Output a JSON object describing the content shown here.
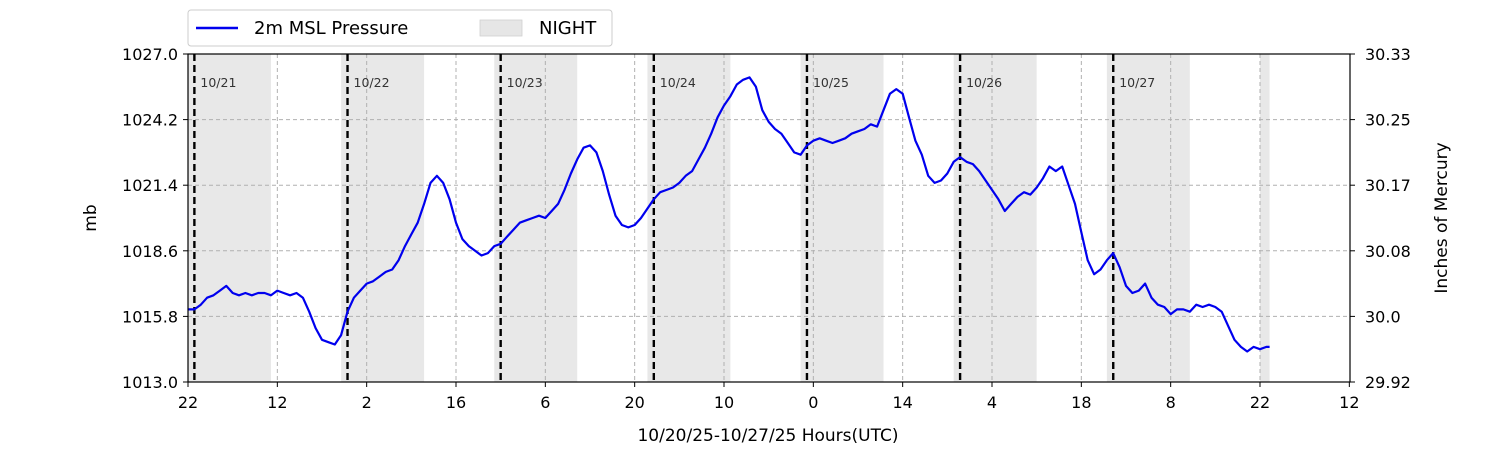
{
  "chart_data": {
    "type": "line",
    "xlabel": "10/20/25-10/27/25  Hours(UTC)",
    "ylabel_left": "mb",
    "ylabel_right": "Inches of Mercury",
    "x_unit": "hours since 10/20/25 22:00 UTC",
    "xlim": [
      0,
      174
    ],
    "ylim_left": [
      1013.0,
      1027.0
    ],
    "ylim_right": [
      29.92,
      30.33
    ],
    "x_tick_positions": [
      0,
      14,
      28,
      42,
      56,
      70,
      84,
      98,
      112,
      126,
      140,
      154,
      168,
      182
    ],
    "x_tick_labels": [
      "22",
      "12",
      "2",
      "16",
      "6",
      "20",
      "10",
      "0",
      "14",
      "4",
      "18",
      "8",
      "22",
      "12"
    ],
    "y_ticks_left": [
      "1013.0",
      "1015.8",
      "1018.6",
      "1021.4",
      "1024.2",
      "1027.0"
    ],
    "y_ticks_right": [
      "29.92",
      "30.0",
      "30.08",
      "30.17",
      "30.25",
      "30.33"
    ],
    "grid": true,
    "legend": {
      "placement": "top-left-outside",
      "entries": [
        "2m MSL Pressure",
        "NIGHT"
      ]
    },
    "day_markers": [
      {
        "x": 1,
        "label": "10/21"
      },
      {
        "x": 25,
        "label": "10/22"
      },
      {
        "x": 49,
        "label": "10/23"
      },
      {
        "x": 73,
        "label": "10/24"
      },
      {
        "x": 97,
        "label": "10/25"
      },
      {
        "x": 121,
        "label": "10/26"
      },
      {
        "x": 145,
        "label": "10/27"
      }
    ],
    "night_periods": [
      [
        0,
        13
      ],
      [
        24,
        37
      ],
      [
        48,
        61
      ],
      [
        72,
        85
      ],
      [
        96,
        109
      ],
      [
        120,
        133
      ],
      [
        144,
        157
      ],
      [
        168,
        169.5
      ]
    ],
    "series": [
      {
        "name": "2m MSL Pressure",
        "color": "#0000ee",
        "points": [
          [
            0,
            1016.1
          ],
          [
            1,
            1016.1
          ],
          [
            2,
            1016.3
          ],
          [
            3,
            1016.6
          ],
          [
            4,
            1016.7
          ],
          [
            5,
            1016.9
          ],
          [
            6,
            1017.1
          ],
          [
            7,
            1016.8
          ],
          [
            8,
            1016.7
          ],
          [
            9,
            1016.8
          ],
          [
            10,
            1016.7
          ],
          [
            11,
            1016.8
          ],
          [
            12,
            1016.8
          ],
          [
            13,
            1016.7
          ],
          [
            14,
            1016.9
          ],
          [
            15,
            1016.8
          ],
          [
            16,
            1016.7
          ],
          [
            17,
            1016.8
          ],
          [
            18,
            1016.6
          ],
          [
            19,
            1016.0
          ],
          [
            20,
            1015.3
          ],
          [
            21,
            1014.8
          ],
          [
            22,
            1014.7
          ],
          [
            23,
            1014.6
          ],
          [
            24,
            1015.0
          ],
          [
            25,
            1016.0
          ],
          [
            26,
            1016.6
          ],
          [
            27,
            1016.9
          ],
          [
            28,
            1017.2
          ],
          [
            29,
            1017.3
          ],
          [
            30,
            1017.5
          ],
          [
            31,
            1017.7
          ],
          [
            32,
            1017.8
          ],
          [
            33,
            1018.2
          ],
          [
            34,
            1018.8
          ],
          [
            35,
            1019.3
          ],
          [
            36,
            1019.8
          ],
          [
            37,
            1020.6
          ],
          [
            38,
            1021.5
          ],
          [
            39,
            1021.8
          ],
          [
            40,
            1021.5
          ],
          [
            41,
            1020.8
          ],
          [
            42,
            1019.8
          ],
          [
            43,
            1019.1
          ],
          [
            44,
            1018.8
          ],
          [
            45,
            1018.6
          ],
          [
            46,
            1018.4
          ],
          [
            47,
            1018.5
          ],
          [
            48,
            1018.8
          ],
          [
            49,
            1018.9
          ],
          [
            50,
            1019.2
          ],
          [
            51,
            1019.5
          ],
          [
            52,
            1019.8
          ],
          [
            53,
            1019.9
          ],
          [
            54,
            1020.0
          ],
          [
            55,
            1020.1
          ],
          [
            56,
            1020.0
          ],
          [
            57,
            1020.3
          ],
          [
            58,
            1020.6
          ],
          [
            59,
            1021.2
          ],
          [
            60,
            1021.9
          ],
          [
            61,
            1022.5
          ],
          [
            62,
            1023.0
          ],
          [
            63,
            1023.1
          ],
          [
            64,
            1022.8
          ],
          [
            65,
            1022.0
          ],
          [
            66,
            1021.0
          ],
          [
            67,
            1020.1
          ],
          [
            68,
            1019.7
          ],
          [
            69,
            1019.6
          ],
          [
            70,
            1019.7
          ],
          [
            71,
            1020.0
          ],
          [
            72,
            1020.4
          ],
          [
            73,
            1020.8
          ],
          [
            74,
            1021.1
          ],
          [
            75,
            1021.2
          ],
          [
            76,
            1021.3
          ],
          [
            77,
            1021.5
          ],
          [
            78,
            1021.8
          ],
          [
            79,
            1022.0
          ],
          [
            80,
            1022.5
          ],
          [
            81,
            1023.0
          ],
          [
            82,
            1023.6
          ],
          [
            83,
            1024.3
          ],
          [
            84,
            1024.8
          ],
          [
            85,
            1025.2
          ],
          [
            86,
            1025.7
          ],
          [
            87,
            1025.9
          ],
          [
            88,
            1026.0
          ],
          [
            89,
            1025.6
          ],
          [
            90,
            1024.6
          ],
          [
            91,
            1024.1
          ],
          [
            92,
            1023.8
          ],
          [
            93,
            1023.6
          ],
          [
            94,
            1023.2
          ],
          [
            95,
            1022.8
          ],
          [
            96,
            1022.7
          ],
          [
            97,
            1023.1
          ],
          [
            98,
            1023.3
          ],
          [
            99,
            1023.4
          ],
          [
            100,
            1023.3
          ],
          [
            101,
            1023.2
          ],
          [
            102,
            1023.3
          ],
          [
            103,
            1023.4
          ],
          [
            104,
            1023.6
          ],
          [
            105,
            1023.7
          ],
          [
            106,
            1023.8
          ],
          [
            107,
            1024.0
          ],
          [
            108,
            1023.9
          ],
          [
            109,
            1024.6
          ],
          [
            110,
            1025.3
          ],
          [
            111,
            1025.5
          ],
          [
            112,
            1025.3
          ],
          [
            113,
            1024.3
          ],
          [
            114,
            1023.3
          ],
          [
            115,
            1022.7
          ],
          [
            116,
            1021.8
          ],
          [
            117,
            1021.5
          ],
          [
            118,
            1021.6
          ],
          [
            119,
            1021.9
          ],
          [
            120,
            1022.4
          ],
          [
            121,
            1022.6
          ],
          [
            122,
            1022.4
          ],
          [
            123,
            1022.3
          ],
          [
            124,
            1022.0
          ],
          [
            125,
            1021.6
          ],
          [
            126,
            1021.2
          ],
          [
            127,
            1020.8
          ],
          [
            128,
            1020.3
          ],
          [
            129,
            1020.6
          ],
          [
            130,
            1020.9
          ],
          [
            131,
            1021.1
          ],
          [
            132,
            1021.0
          ],
          [
            133,
            1021.3
          ],
          [
            134,
            1021.7
          ],
          [
            135,
            1022.2
          ],
          [
            136,
            1022.0
          ],
          [
            137,
            1022.2
          ],
          [
            138,
            1021.4
          ],
          [
            139,
            1020.6
          ],
          [
            140,
            1019.4
          ],
          [
            141,
            1018.2
          ],
          [
            142,
            1017.6
          ],
          [
            143,
            1017.8
          ],
          [
            144,
            1018.2
          ],
          [
            145,
            1018.5
          ],
          [
            146,
            1017.9
          ],
          [
            147,
            1017.1
          ],
          [
            148,
            1016.8
          ],
          [
            149,
            1016.9
          ],
          [
            150,
            1017.2
          ],
          [
            151,
            1016.6
          ],
          [
            152,
            1016.3
          ],
          [
            153,
            1016.2
          ],
          [
            154,
            1015.9
          ],
          [
            155,
            1016.1
          ],
          [
            156,
            1016.1
          ],
          [
            157,
            1016.0
          ],
          [
            158,
            1016.3
          ],
          [
            159,
            1016.2
          ],
          [
            160,
            1016.3
          ],
          [
            161,
            1016.2
          ],
          [
            162,
            1016.0
          ],
          [
            163,
            1015.4
          ],
          [
            164,
            1014.8
          ],
          [
            165,
            1014.5
          ],
          [
            166,
            1014.3
          ],
          [
            167,
            1014.5
          ],
          [
            168,
            1014.4
          ],
          [
            169,
            1014.5
          ],
          [
            169.5,
            1014.5
          ]
        ]
      }
    ]
  }
}
